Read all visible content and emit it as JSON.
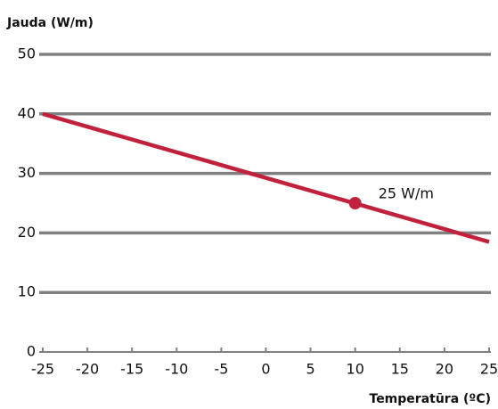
{
  "chart_data": {
    "type": "line",
    "y_label": "Jauda (W/m)",
    "x_label": "Temperatūra (ºC)",
    "x": [
      -25,
      25
    ],
    "series": [
      {
        "name": null,
        "color": "#c1213a",
        "values": [
          40,
          18.5
        ]
      }
    ],
    "annotations": [
      {
        "x": 10,
        "y": 25,
        "text": "25 W/m"
      }
    ],
    "xlim": [
      -25,
      25
    ],
    "xticks": [
      -25,
      -20,
      -15,
      -10,
      -5,
      0,
      5,
      10,
      15,
      20,
      25
    ],
    "ylim": [
      0,
      50
    ],
    "yticks": [
      0,
      10,
      20,
      30,
      40,
      50
    ],
    "grid": true,
    "grid_color": "#808080"
  }
}
